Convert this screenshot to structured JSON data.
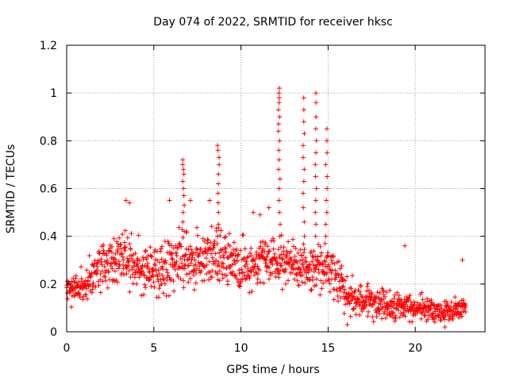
{
  "chart_data": {
    "type": "scatter",
    "title": "Day 074 of 2022, SRMTID for receiver hksc",
    "xlabel": "GPS time / hours",
    "ylabel": "SRMTID / TECUs",
    "xlim": [
      0,
      24
    ],
    "ylim": [
      0,
      1.2
    ],
    "x_ticks": [
      0,
      5,
      10,
      15,
      20
    ],
    "y_ticks": [
      0,
      0.2,
      0.4,
      0.6,
      0.8,
      1,
      1.2
    ],
    "x_tick_labels": [
      "0",
      "5",
      "10",
      "15",
      "20"
    ],
    "y_tick_labels": [
      "0",
      "0.2",
      "0.4",
      "0.6",
      "0.8",
      "1",
      "1.2"
    ],
    "grid": true,
    "marker": "+",
    "color": "#ff0000",
    "profile": [
      [
        0,
        0.17
      ],
      [
        0.5,
        0.19
      ],
      [
        1,
        0.2
      ],
      [
        1.5,
        0.23
      ],
      [
        2,
        0.27
      ],
      [
        2.5,
        0.3
      ],
      [
        3,
        0.32
      ],
      [
        3.5,
        0.3
      ],
      [
        4,
        0.28
      ],
      [
        4.5,
        0.26
      ],
      [
        5,
        0.25
      ],
      [
        5.5,
        0.27
      ],
      [
        6,
        0.29
      ],
      [
        6.5,
        0.31
      ],
      [
        7,
        0.3
      ],
      [
        7.5,
        0.3
      ],
      [
        8,
        0.31
      ],
      [
        8.5,
        0.32
      ],
      [
        9,
        0.3
      ],
      [
        9.5,
        0.28
      ],
      [
        10,
        0.27
      ],
      [
        10.5,
        0.28
      ],
      [
        11,
        0.29
      ],
      [
        11.5,
        0.28
      ],
      [
        12,
        0.27
      ],
      [
        12.5,
        0.3
      ],
      [
        13,
        0.27
      ],
      [
        13.5,
        0.27
      ],
      [
        14,
        0.27
      ],
      [
        14.5,
        0.27
      ],
      [
        15,
        0.26
      ],
      [
        15.5,
        0.22
      ],
      [
        16,
        0.16
      ],
      [
        16.5,
        0.14
      ],
      [
        17,
        0.13
      ],
      [
        17.5,
        0.13
      ],
      [
        18,
        0.12
      ],
      [
        18.5,
        0.12
      ],
      [
        19,
        0.11
      ],
      [
        19.5,
        0.11
      ],
      [
        20,
        0.1
      ],
      [
        20.5,
        0.1
      ],
      [
        21,
        0.09
      ],
      [
        21.5,
        0.08
      ],
      [
        22,
        0.09
      ],
      [
        22.5,
        0.1
      ],
      [
        22.9,
        0.11
      ]
    ],
    "spikes": [
      {
        "x": 6.7,
        "y": [
          0.72,
          0.7,
          0.68,
          0.66,
          0.63,
          0.6,
          0.57,
          0.53,
          0.5,
          0.46,
          0.42
        ]
      },
      {
        "x": 8.7,
        "y": [
          0.78,
          0.76,
          0.73,
          0.7,
          0.66,
          0.62,
          0.58,
          0.54,
          0.5,
          0.45,
          0.4
        ]
      },
      {
        "x": 12.2,
        "y": [
          1.02,
          1.0,
          0.98,
          0.96,
          0.93,
          0.9,
          0.87,
          0.84,
          0.8,
          0.76,
          0.72,
          0.68,
          0.64,
          0.6,
          0.55,
          0.5,
          0.45,
          0.4
        ]
      },
      {
        "x": 13.6,
        "y": [
          0.98,
          0.93,
          0.88,
          0.83,
          0.78,
          0.73,
          0.68,
          0.63,
          0.58,
          0.52,
          0.46,
          0.4
        ]
      },
      {
        "x": 14.3,
        "y": [
          1.0,
          0.96,
          0.9,
          0.85,
          0.8,
          0.75,
          0.7,
          0.65,
          0.6,
          0.55,
          0.5,
          0.45,
          0.4
        ]
      },
      {
        "x": 14.9,
        "y": [
          0.85,
          0.8,
          0.75,
          0.7,
          0.65,
          0.6,
          0.55,
          0.5,
          0.45,
          0.4
        ]
      }
    ],
    "outliers": [
      [
        3.4,
        0.55
      ],
      [
        3.6,
        0.54
      ],
      [
        5.9,
        0.55
      ],
      [
        7.1,
        0.55
      ],
      [
        8.2,
        0.55
      ],
      [
        10.7,
        0.5
      ],
      [
        11.1,
        0.49
      ],
      [
        11.6,
        0.52
      ],
      [
        19.4,
        0.36
      ],
      [
        16.1,
        0.03
      ],
      [
        21.7,
        0.02
      ],
      [
        22.7,
        0.3
      ]
    ]
  }
}
